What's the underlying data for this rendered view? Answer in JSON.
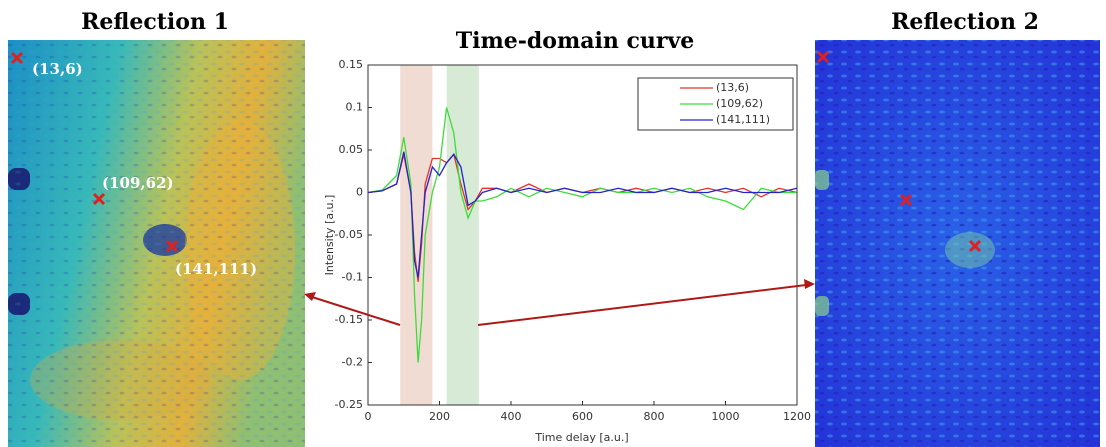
{
  "chart_data": {
    "type": "line",
    "title": "Time-domain curve",
    "x_label": "Time delay [a.u.]",
    "y_label": "Intensity [a.u.]",
    "x": [
      0,
      40,
      80,
      100,
      120,
      130,
      140,
      150,
      160,
      180,
      200,
      220,
      240,
      260,
      280,
      300,
      320,
      360,
      400,
      450,
      500,
      550,
      600,
      650,
      700,
      750,
      800,
      850,
      900,
      950,
      1000,
      1050,
      1100,
      1150,
      1200
    ],
    "series": [
      {
        "name": "(13,6)",
        "color": "#e8302a",
        "values": [
          0,
          0.002,
          0.01,
          0.045,
          0.0,
          -0.07,
          -0.105,
          -0.06,
          0.01,
          0.04,
          0.04,
          0.035,
          0.045,
          0.01,
          -0.02,
          -0.01,
          0.005,
          0.005,
          0.0,
          0.01,
          0.0,
          0.005,
          0.0,
          0.005,
          0.0,
          0.005,
          0.0,
          0.005,
          0.0,
          0.005,
          0.0,
          0.005,
          -0.005,
          0.005,
          0.0
        ]
      },
      {
        "name": "(109,62)",
        "color": "#3ddc3a",
        "values": [
          0,
          0.003,
          0.02,
          0.065,
          0.01,
          -0.12,
          -0.2,
          -0.15,
          -0.05,
          0.0,
          0.03,
          0.1,
          0.07,
          0.0,
          -0.03,
          -0.01,
          -0.01,
          -0.005,
          0.005,
          -0.005,
          0.005,
          0.0,
          -0.005,
          0.005,
          0.0,
          0.0,
          0.005,
          0.0,
          0.005,
          -0.005,
          -0.01,
          -0.02,
          0.005,
          0.0,
          0.0
        ]
      },
      {
        "name": "(141,111)",
        "color": "#2424c8",
        "values": [
          0,
          0.002,
          0.01,
          0.048,
          0.0,
          -0.08,
          -0.1,
          -0.05,
          0.0,
          0.03,
          0.02,
          0.035,
          0.045,
          0.03,
          -0.015,
          -0.01,
          0.0,
          0.005,
          0.0,
          0.005,
          0.0,
          0.005,
          0.0,
          0.0,
          0.005,
          0.0,
          0.0,
          0.005,
          0.0,
          0.0,
          0.005,
          0.0,
          0.0,
          0.0,
          0.005
        ]
      }
    ],
    "highlights": [
      {
        "xlim": [
          90,
          180
        ],
        "color": "#f1dcd4"
      },
      {
        "xlim": [
          220,
          310
        ],
        "color": "#d6ead5"
      }
    ],
    "xlim": [
      0,
      1200
    ],
    "xticks": [
      0,
      200,
      400,
      600,
      800,
      1000,
      1200
    ],
    "ylim": [
      -0.25,
      0.15
    ],
    "yticks": [
      0.15,
      0.1,
      0.05,
      0,
      -0.05,
      -0.1,
      -0.15,
      -0.2,
      -0.25
    ],
    "grid": false,
    "legend": "upper-right"
  },
  "images": {
    "left": {
      "title": "Reflection 1",
      "labels": [
        "(13,6)",
        "(109,62)",
        "(141,111)"
      ]
    },
    "right": {
      "title": "Reflection 2"
    }
  }
}
